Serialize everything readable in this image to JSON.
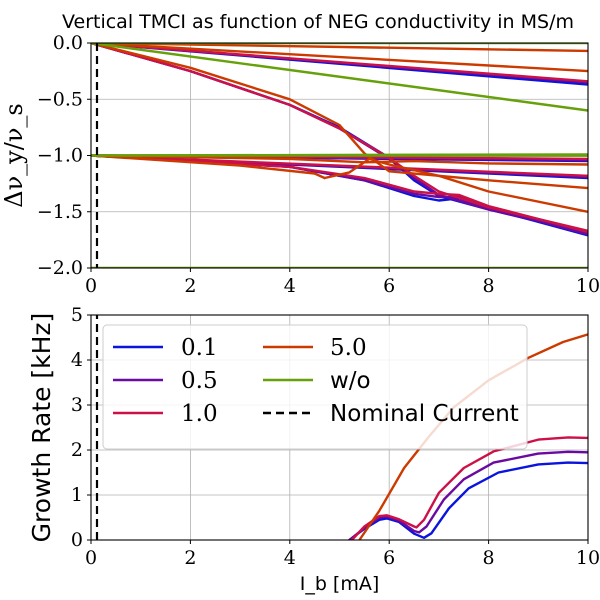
{
  "title": "Vertical TMCI as function of NEG conductivity in MS/m",
  "colors": {
    "0.1": "#0a14dc",
    "0.5": "#6a0aa0",
    "1.0": "#cc1048",
    "5.0": "#cc3a00",
    "w/o": "#66a00a",
    "nominal": "#000000",
    "grid": "#b0b0b0"
  },
  "chart_data": [
    {
      "type": "line",
      "title": "Vertical TMCI as function of NEG conductivity in MS/m",
      "xlabel": "",
      "ylabel": "Δν_y/ν_s",
      "xlim": [
        0,
        10
      ],
      "ylim": [
        -2.0,
        0.0
      ],
      "xticks": [
        "0",
        "2",
        "4",
        "6",
        "8",
        "10"
      ],
      "yticks": [
        "0.0",
        "−0.5",
        "−1.0",
        "−1.5",
        "−2.0"
      ],
      "grid": true,
      "series": [
        {
          "name": "0.1",
          "color_key": "0.1",
          "lines": [
            [
              [
                0,
                0
              ],
              [
                10,
                -0.37
              ]
            ],
            [
              [
                0,
                0
              ],
              [
                2,
                -0.25
              ],
              [
                4,
                -0.55
              ],
              [
                5,
                -0.75
              ],
              [
                6,
                -1.02
              ],
              [
                6.5,
                -1.22
              ],
              [
                7,
                -1.36
              ],
              [
                8,
                -1.48
              ],
              [
                10,
                -1.69
              ]
            ],
            [
              [
                0,
                -1.0
              ],
              [
                4,
                -1.1
              ],
              [
                5.5,
                -1.22
              ],
              [
                6.5,
                -1.36
              ],
              [
                7,
                -1.4
              ],
              [
                7.4,
                -1.38
              ],
              [
                8,
                -1.47
              ],
              [
                10,
                -1.71
              ]
            ],
            [
              [
                0,
                -1.0
              ],
              [
                10,
                -1.2
              ]
            ],
            [
              [
                0,
                -1.0
              ],
              [
                10,
                -1.05
              ]
            ]
          ]
        },
        {
          "name": "0.5",
          "color_key": "0.5",
          "lines": [
            [
              [
                0,
                0
              ],
              [
                10,
                -0.35
              ]
            ],
            [
              [
                0,
                0
              ],
              [
                2,
                -0.25
              ],
              [
                4,
                -0.55
              ],
              [
                5,
                -0.76
              ],
              [
                6,
                -1.03
              ],
              [
                6.5,
                -1.2
              ],
              [
                7,
                -1.35
              ],
              [
                8,
                -1.48
              ],
              [
                10,
                -1.68
              ]
            ],
            [
              [
                0,
                -1.0
              ],
              [
                4,
                -1.1
              ],
              [
                5.5,
                -1.22
              ],
              [
                6.5,
                -1.34
              ],
              [
                7,
                -1.37
              ],
              [
                7.4,
                -1.37
              ],
              [
                8,
                -1.46
              ],
              [
                10,
                -1.7
              ]
            ],
            [
              [
                0,
                -1.0
              ],
              [
                10,
                -1.19
              ]
            ],
            [
              [
                0,
                -1.0
              ],
              [
                10,
                -1.04
              ]
            ]
          ]
        },
        {
          "name": "1.0",
          "color_key": "1.0",
          "lines": [
            [
              [
                0,
                0
              ],
              [
                10,
                -0.34
              ]
            ],
            [
              [
                0,
                0
              ],
              [
                2,
                -0.25
              ],
              [
                4,
                -0.55
              ],
              [
                5,
                -0.76
              ],
              [
                6,
                -1.02
              ],
              [
                6.5,
                -1.18
              ],
              [
                7,
                -1.32
              ],
              [
                8,
                -1.46
              ],
              [
                10,
                -1.67
              ]
            ],
            [
              [
                0,
                -1.0
              ],
              [
                4,
                -1.1
              ],
              [
                5.5,
                -1.2
              ],
              [
                6.5,
                -1.32
              ],
              [
                7,
                -1.34
              ],
              [
                7.4,
                -1.35
              ],
              [
                8,
                -1.45
              ],
              [
                10,
                -1.68
              ]
            ],
            [
              [
                0,
                -1.0
              ],
              [
                10,
                -1.18
              ]
            ],
            [
              [
                0,
                -1.0
              ],
              [
                10,
                -1.03
              ]
            ]
          ]
        },
        {
          "name": "5.0",
          "color_key": "5.0",
          "lines": [
            [
              [
                0,
                0
              ],
              [
                10,
                -0.25
              ]
            ],
            [
              [
                0,
                0
              ],
              [
                10,
                -0.07
              ]
            ],
            [
              [
                0,
                0
              ],
              [
                2,
                -0.22
              ],
              [
                4,
                -0.5
              ],
              [
                5,
                -0.73
              ],
              [
                5.5,
                -0.98
              ],
              [
                6,
                -1.14
              ],
              [
                8,
                -1.22
              ],
              [
                10,
                -1.29
              ]
            ],
            [
              [
                0,
                -1.0
              ],
              [
                4,
                -1.03
              ],
              [
                5.5,
                -1.06
              ],
              [
                6.5,
                -1.05
              ],
              [
                8,
                -1.07
              ],
              [
                10,
                -1.08
              ]
            ],
            [
              [
                4.7,
                -1.2
              ],
              [
                5.2,
                -1.15
              ],
              [
                5.6,
                -1.03
              ],
              [
                6,
                -1.08
              ],
              [
                7,
                -1.18
              ],
              [
                8,
                -1.32
              ],
              [
                10,
                -1.5
              ]
            ],
            [
              [
                0,
                -1.0
              ],
              [
                3,
                -1.09
              ],
              [
                4.5,
                -1.16
              ],
              [
                4.7,
                -1.2
              ]
            ],
            [
              [
                0,
                -1.0
              ],
              [
                10,
                -1.0
              ]
            ]
          ]
        },
        {
          "name": "w/o",
          "color_key": "w/o",
          "lines": [
            [
              [
                0,
                0
              ],
              [
                10,
                -0.6
              ]
            ],
            [
              [
                0,
                0
              ],
              [
                10,
                0.0
              ]
            ],
            [
              [
                0,
                -1.0
              ],
              [
                10,
                -1.0
              ]
            ],
            [
              [
                0,
                -1.0
              ],
              [
                10,
                -0.99
              ]
            ],
            [
              [
                0,
                -2.0
              ],
              [
                10,
                -2.0
              ]
            ]
          ]
        },
        {
          "name": "Nominal Current",
          "color_key": "nominal",
          "dashed": true,
          "lines": [
            [
              [
                0.12,
                0.0
              ],
              [
                0.12,
                -2.0
              ]
            ]
          ]
        }
      ]
    },
    {
      "type": "line",
      "title": "",
      "xlabel": "I_b [mA]",
      "ylabel": "Growth Rate [kHz]",
      "xlim": [
        0,
        10
      ],
      "ylim": [
        0,
        5
      ],
      "xticks": [
        "0",
        "2",
        "4",
        "6",
        "8",
        "10"
      ],
      "yticks": [
        "0",
        "1",
        "2",
        "3",
        "4",
        "5"
      ],
      "grid": true,
      "legend_position": "upper-left",
      "series": [
        {
          "name": "0.1",
          "color_key": "0.1",
          "lines": [
            [
              [
                5.2,
                0
              ],
              [
                5.5,
                0.25
              ],
              [
                5.8,
                0.45
              ],
              [
                5.95,
                0.48
              ],
              [
                6.2,
                0.4
              ],
              [
                6.5,
                0.14
              ],
              [
                6.7,
                0.05
              ],
              [
                6.85,
                0.15
              ],
              [
                7.2,
                0.7
              ],
              [
                7.6,
                1.15
              ],
              [
                8.2,
                1.5
              ],
              [
                9,
                1.68
              ],
              [
                9.6,
                1.72
              ],
              [
                10,
                1.71
              ]
            ]
          ]
        },
        {
          "name": "0.5",
          "color_key": "0.5",
          "lines": [
            [
              [
                5.2,
                0
              ],
              [
                5.5,
                0.27
              ],
              [
                5.8,
                0.5
              ],
              [
                5.95,
                0.52
              ],
              [
                6.2,
                0.43
              ],
              [
                6.5,
                0.2
              ],
              [
                6.6,
                0.17
              ],
              [
                6.75,
                0.3
              ],
              [
                7.1,
                0.9
              ],
              [
                7.5,
                1.35
              ],
              [
                8.1,
                1.72
              ],
              [
                9,
                1.92
              ],
              [
                9.6,
                1.96
              ],
              [
                10,
                1.95
              ]
            ]
          ]
        },
        {
          "name": "1.0",
          "color_key": "1.0",
          "lines": [
            [
              [
                5.25,
                0
              ],
              [
                5.5,
                0.3
              ],
              [
                5.8,
                0.53
              ],
              [
                5.95,
                0.55
              ],
              [
                6.2,
                0.46
              ],
              [
                6.5,
                0.3
              ],
              [
                6.55,
                0.28
              ],
              [
                6.7,
                0.45
              ],
              [
                7,
                1.05
              ],
              [
                7.5,
                1.6
              ],
              [
                8.1,
                1.97
              ],
              [
                9,
                2.23
              ],
              [
                9.6,
                2.28
              ],
              [
                10,
                2.27
              ]
            ]
          ]
        },
        {
          "name": "5.0",
          "color_key": "5.0",
          "lines": [
            [
              [
                5.4,
                0
              ],
              [
                5.8,
                0.65
              ],
              [
                6.3,
                1.6
              ],
              [
                6.8,
                2.3
              ],
              [
                7.3,
                2.95
              ],
              [
                8,
                3.55
              ],
              [
                8.8,
                4.05
              ],
              [
                9.5,
                4.4
              ],
              [
                10,
                4.57
              ]
            ]
          ]
        },
        {
          "name": "w/o",
          "color_key": "w/o",
          "lines": []
        },
        {
          "name": "Nominal Current",
          "color_key": "nominal",
          "dashed": true,
          "lines": [
            [
              [
                0.12,
                0
              ],
              [
                0.12,
                5
              ]
            ]
          ]
        }
      ],
      "legend": [
        {
          "label": "0.1",
          "color_key": "0.1",
          "dashed": false
        },
        {
          "label": "0.5",
          "color_key": "0.5",
          "dashed": false
        },
        {
          "label": "1.0",
          "color_key": "1.0",
          "dashed": false
        },
        {
          "label": "5.0",
          "color_key": "5.0",
          "dashed": false
        },
        {
          "label": "w/o",
          "color_key": "w/o",
          "dashed": false
        },
        {
          "label": "Nominal Current",
          "color_key": "nominal",
          "dashed": true
        }
      ]
    }
  ]
}
